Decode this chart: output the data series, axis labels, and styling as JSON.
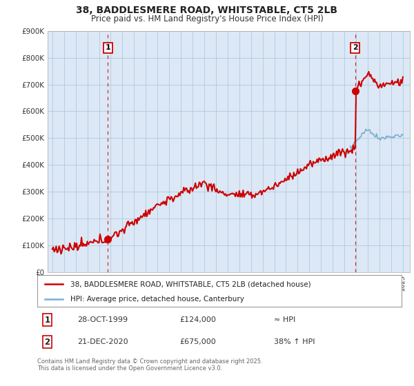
{
  "title_line1": "38, BADDLESMERE ROAD, WHITSTABLE, CT5 2LB",
  "title_line2": "Price paid vs. HM Land Registry's House Price Index (HPI)",
  "background_color": "#ffffff",
  "plot_bg_color": "#dce8f5",
  "grid_color": "#b0c8e0",
  "hpi_color": "#7aaed4",
  "price_color": "#cc0000",
  "legend_line1": "38, BADDLESMERE ROAD, WHITSTABLE, CT5 2LB (detached house)",
  "legend_line2": "HPI: Average price, detached house, Canterbury",
  "annotation1_date": "28-OCT-1999",
  "annotation1_price_str": "£124,000",
  "annotation1_note": "≈ HPI",
  "annotation2_date": "21-DEC-2020",
  "annotation2_price_str": "£675,000",
  "annotation2_note": "38% ↑ HPI",
  "footer_line1": "Contains HM Land Registry data © Crown copyright and database right 2025.",
  "footer_line2": "This data is licensed under the Open Government Licence v3.0.",
  "ylim_max": 900000,
  "ylim_min": 0,
  "sale1_year": 1999.75,
  "sale1_price": 124000,
  "sale2_year": 2020.92,
  "sale2_price": 675000
}
